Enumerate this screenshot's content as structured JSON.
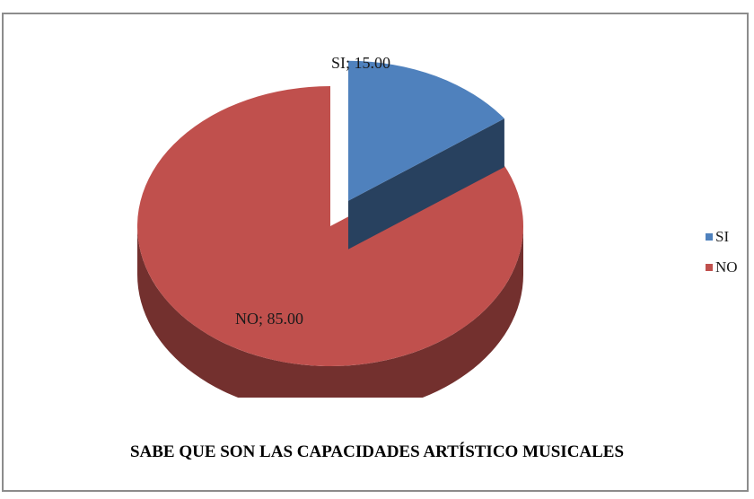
{
  "chart_data": {
    "type": "pie",
    "title": "SABE QUE SON LAS CAPACIDADES ARTÍSTICO MUSICALES",
    "categories": [
      "SI",
      "NO"
    ],
    "values": [
      15.0,
      85.0
    ],
    "data_labels": [
      "SI; 15.00",
      "NO; 85.00"
    ],
    "colors": [
      "#4f81bd",
      "#c0504d"
    ],
    "legend_position": "right",
    "exploded": "SI",
    "style": "3d"
  }
}
